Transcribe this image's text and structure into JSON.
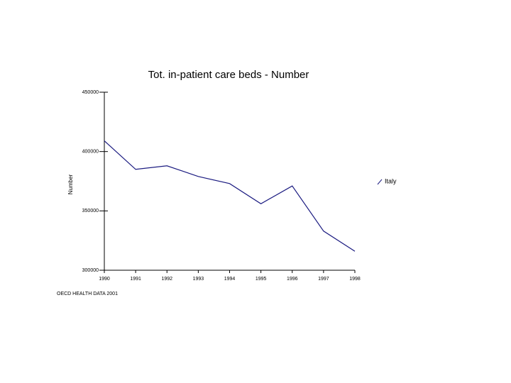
{
  "chart_data": {
    "type": "line",
    "title": "Tot. in-patient care beds - Number",
    "y_label": "Number",
    "source": "OECD HEALTH DATA 2001",
    "x": [
      1990,
      1991,
      1992,
      1993,
      1994,
      1995,
      1996,
      1997,
      1998
    ],
    "xlim": [
      1990,
      1998
    ],
    "xticks": [
      1990,
      1991,
      1992,
      1993,
      1994,
      1995,
      1996,
      1997,
      1998
    ],
    "ylim": [
      300000,
      450000
    ],
    "yticks": [
      300000,
      350000,
      400000,
      450000
    ],
    "series": [
      {
        "name": "Italy",
        "color": "#1a1a80",
        "values": [
          409000,
          385000,
          388000,
          379000,
          373000,
          356000,
          371000,
          333000,
          316000
        ]
      }
    ]
  }
}
